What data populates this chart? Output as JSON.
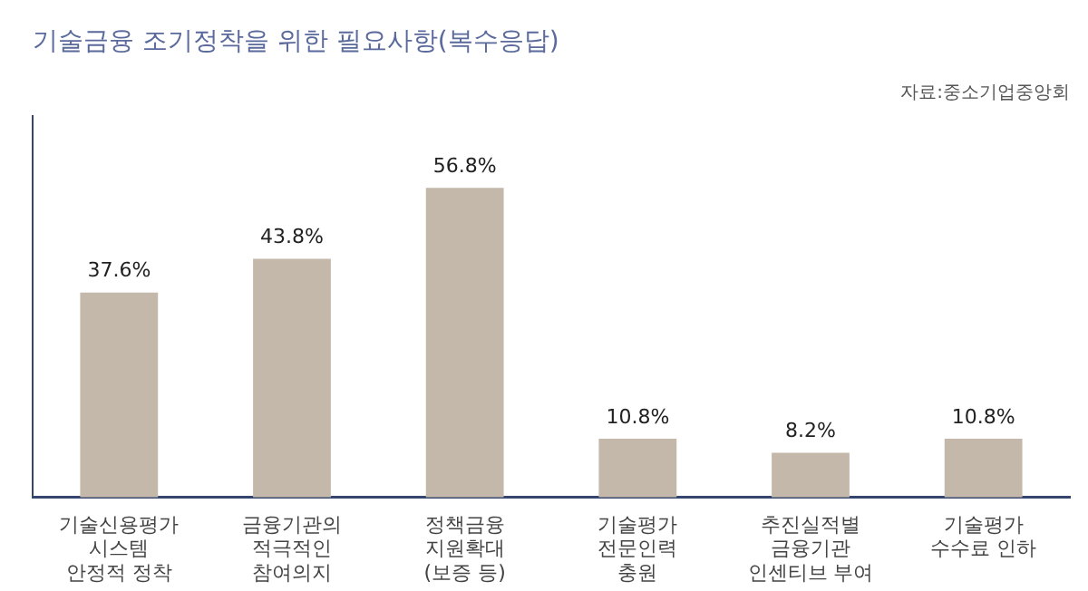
{
  "chart_data": {
    "type": "bar",
    "title": "기술금융 조기정착을 위한 필요사항(복수응답)",
    "categories": [
      "기술신용평가\n시스템\n안정적 정착",
      "금융기관의\n적극적인\n참여의지",
      "정책금융\n지원확대\n(보증 등)",
      "기술평가\n전문인력\n충원",
      "추진실적별\n금융기관\n인센티브 부여",
      "기술평가\n수수료 인하"
    ],
    "values": [
      37.6,
      43.8,
      56.8,
      10.8,
      8.2,
      10.8
    ],
    "value_labels": [
      "37.6%",
      "43.8%",
      "56.8%",
      "10.8%",
      "8.2%",
      "10.8%"
    ],
    "color": "#c4b8aa",
    "annotations": [
      "자료:중소기업중앙회"
    ],
    "grid": false,
    "legend": false
  }
}
